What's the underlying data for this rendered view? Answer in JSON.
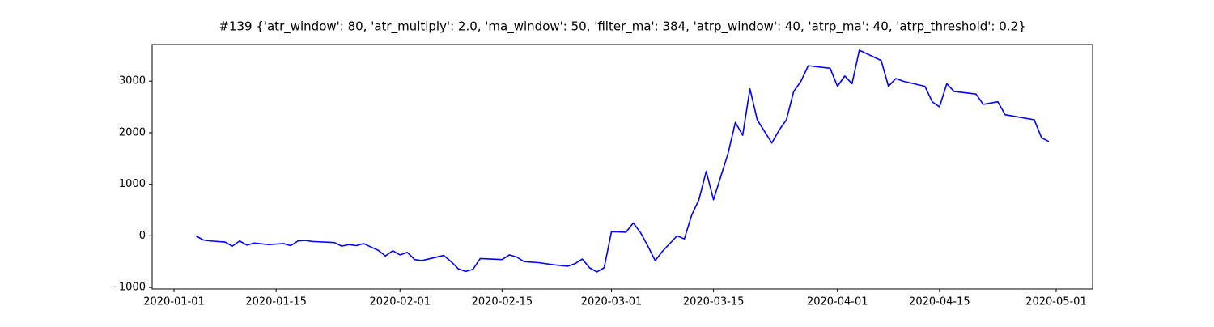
{
  "chart_data": {
    "type": "line",
    "title": "#139 {'atr_window': 80, 'atr_multiply': 2.0, 'ma_window': 50, 'filter_ma': 384, 'atrp_window': 40, 'atrp_ma': 40, 'atrp_threshold': 0.2}",
    "x": [
      "2020-01-04",
      "2020-01-05",
      "2020-01-06",
      "2020-01-08",
      "2020-01-09",
      "2020-01-10",
      "2020-01-11",
      "2020-01-12",
      "2020-01-14",
      "2020-01-16",
      "2020-01-17",
      "2020-01-18",
      "2020-01-19",
      "2020-01-20",
      "2020-01-23",
      "2020-01-24",
      "2020-01-25",
      "2020-01-26",
      "2020-01-27",
      "2020-01-29",
      "2020-01-30",
      "2020-01-31",
      "2020-02-01",
      "2020-02-02",
      "2020-02-03",
      "2020-02-04",
      "2020-02-07",
      "2020-02-08",
      "2020-02-09",
      "2020-02-10",
      "2020-02-11",
      "2020-02-12",
      "2020-02-15",
      "2020-02-16",
      "2020-02-17",
      "2020-02-18",
      "2020-02-20",
      "2020-02-22",
      "2020-02-24",
      "2020-02-25",
      "2020-02-26",
      "2020-02-27",
      "2020-02-28",
      "2020-02-29",
      "2020-03-01",
      "2020-03-03",
      "2020-03-04",
      "2020-03-05",
      "2020-03-06",
      "2020-03-07",
      "2020-03-08",
      "2020-03-10",
      "2020-03-11",
      "2020-03-12",
      "2020-03-13",
      "2020-03-14",
      "2020-03-15",
      "2020-03-17",
      "2020-03-18",
      "2020-03-19",
      "2020-03-20",
      "2020-03-21",
      "2020-03-23",
      "2020-03-24",
      "2020-03-25",
      "2020-03-26",
      "2020-03-27",
      "2020-03-28",
      "2020-03-31",
      "2020-04-01",
      "2020-04-02",
      "2020-04-03",
      "2020-04-04",
      "2020-04-07",
      "2020-04-08",
      "2020-04-09",
      "2020-04-10",
      "2020-04-13",
      "2020-04-14",
      "2020-04-15",
      "2020-04-16",
      "2020-04-17",
      "2020-04-20",
      "2020-04-21",
      "2020-04-23",
      "2020-04-24",
      "2020-04-28",
      "2020-04-29",
      "2020-04-30"
    ],
    "series": [
      {
        "color": "#0000ff",
        "values": [
          0,
          -80,
          -100,
          -120,
          -200,
          -100,
          -180,
          -140,
          -170,
          -150,
          -190,
          -100,
          -90,
          -110,
          -130,
          -200,
          -170,
          -190,
          -150,
          -280,
          -390,
          -290,
          -370,
          -320,
          -460,
          -480,
          -380,
          -500,
          -640,
          -690,
          -650,
          -440,
          -460,
          -370,
          -410,
          -500,
          -520,
          -560,
          -590,
          -540,
          -450,
          -620,
          -700,
          -620,
          80,
          70,
          250,
          60,
          -200,
          -480,
          -300,
          0,
          -60,
          400,
          700,
          1250,
          700,
          1600,
          2200,
          1950,
          2850,
          2250,
          1800,
          2050,
          2250,
          2800,
          3000,
          3300,
          3250,
          2900,
          3100,
          2950,
          3600,
          3400,
          2900,
          3050,
          3000,
          2900,
          2600,
          2500,
          2950,
          2800,
          2750,
          2550,
          2600,
          2350,
          2250,
          1900,
          1830
        ]
      }
    ],
    "xlim": [
      "2019-12-29",
      "2020-05-06"
    ],
    "xticks": [
      "2020-01-01",
      "2020-01-15",
      "2020-02-01",
      "2020-02-15",
      "2020-03-01",
      "2020-03-15",
      "2020-04-01",
      "2020-04-15",
      "2020-05-01"
    ],
    "ylim": [
      -1030,
      3710
    ],
    "yticks": [
      {
        "value": -1000,
        "label": "−1000"
      },
      0,
      1000,
      2000,
      3000
    ]
  }
}
